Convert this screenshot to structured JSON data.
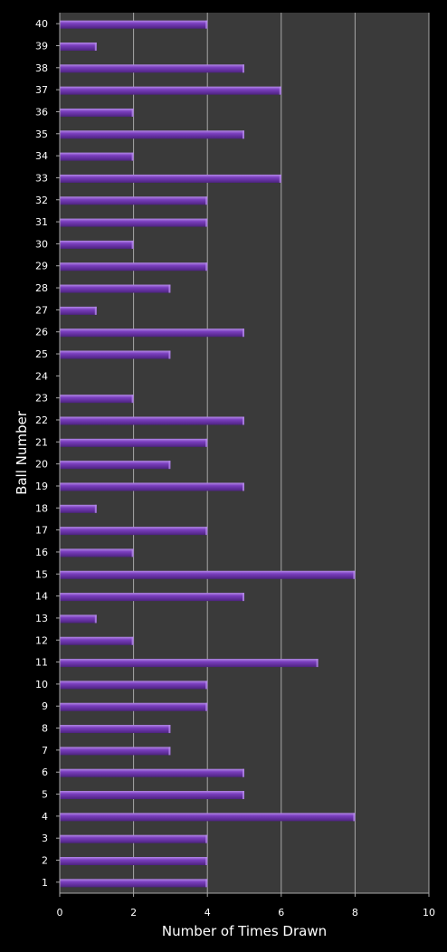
{
  "chart_data": {
    "type": "bar",
    "orientation": "horizontal",
    "xlabel": "Number of Times Drawn",
    "ylabel": "Ball Number",
    "xlim": [
      0,
      10
    ],
    "x_ticks": [
      0,
      2,
      4,
      6,
      8,
      10
    ],
    "grid": "vertical",
    "categories": [
      "1",
      "2",
      "3",
      "4",
      "5",
      "6",
      "7",
      "8",
      "9",
      "10",
      "11",
      "12",
      "13",
      "14",
      "15",
      "16",
      "17",
      "18",
      "19",
      "20",
      "21",
      "22",
      "23",
      "24",
      "25",
      "26",
      "27",
      "28",
      "29",
      "30",
      "31",
      "32",
      "33",
      "34",
      "35",
      "36",
      "37",
      "38",
      "39",
      "40"
    ],
    "values": [
      4,
      4,
      4,
      8,
      5,
      5,
      3,
      3,
      4,
      4,
      7,
      2,
      1,
      5,
      8,
      2,
      4,
      1,
      5,
      3,
      4,
      5,
      2,
      0,
      3,
      5,
      1,
      3,
      4,
      2,
      4,
      4,
      6,
      2,
      5,
      2,
      6,
      5,
      1,
      4
    ]
  },
  "colors": {
    "background": "#000000",
    "plot_area": "#3a3a3a",
    "gridline": "#a8a8a8",
    "bar": "#7b3fbf",
    "bar_highlight": "#b48ae8",
    "bar_shadow": "#4d2380",
    "text": "#ffffff"
  }
}
